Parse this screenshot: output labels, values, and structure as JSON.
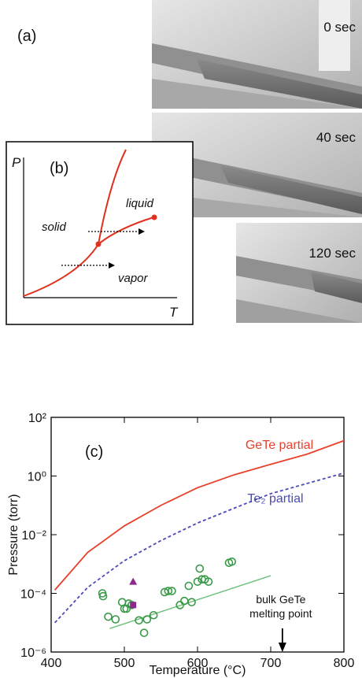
{
  "panel_a": {
    "label": "(a)",
    "frames": [
      "0 sec",
      "40 sec",
      "120 sec"
    ]
  },
  "panel_b": {
    "label": "(b)",
    "y_axis": "P",
    "x_axis": "T",
    "regions": [
      "solid",
      "liquid",
      "vapor"
    ]
  },
  "chart_data": {
    "type": "line",
    "panel_label": "(c)",
    "x_label": "Temperature (°C)",
    "y_label": "Pressure (torr)",
    "xlim": [
      400,
      800
    ],
    "xticks": [
      400,
      500,
      600,
      700,
      800
    ],
    "ylim": [
      1e-06,
      100
    ],
    "log_y": true,
    "yticks": [
      {
        "value": 1e-06,
        "label": "10⁻⁶"
      },
      {
        "value": 0.0001,
        "label": "10⁻⁴"
      },
      {
        "value": 0.01,
        "label": "10⁻²"
      },
      {
        "value": 1,
        "label": "10⁰"
      },
      {
        "value": 100,
        "label": "10²"
      }
    ],
    "series": [
      {
        "name": "GeTe partial",
        "color": "#e8402a",
        "x": [
          405,
          450,
          500,
          550,
          600,
          650,
          700,
          750,
          800
        ],
        "values": [
          0.00013,
          0.0025,
          0.02,
          0.1,
          0.4,
          1.1,
          2.5,
          5.6,
          16
        ]
      },
      {
        "name": "Te₂ partial",
        "color": "#4a4ab8",
        "dashed": true,
        "x": [
          405,
          450,
          500,
          550,
          600,
          650,
          700,
          750,
          800
        ],
        "values": [
          1e-05,
          0.00016,
          0.0013,
          0.0063,
          0.025,
          0.08,
          0.25,
          0.56,
          1.26
        ]
      },
      {
        "color": "#6cc07a",
        "x": [
          480,
          700
        ],
        "values": [
          6.3e-06,
          0.0004
        ]
      },
      {
        "color": "#3a9a4a",
        "marker": "circle",
        "x": [
          470,
          471,
          478,
          488,
          497,
          500,
          503,
          506,
          510,
          520,
          527,
          531,
          540,
          555,
          560,
          565,
          576,
          582,
          588,
          592,
          600,
          603,
          606,
          610,
          615,
          643,
          647
        ],
        "values": [
          0.0001,
          8e-05,
          1.6e-05,
          1.3e-05,
          5e-05,
          3e-05,
          3e-05,
          4.5e-05,
          4e-05,
          1.2e-05,
          4.5e-06,
          1.3e-05,
          1.8e-05,
          0.00011,
          0.00012,
          0.00012,
          4e-05,
          5.5e-05,
          0.00018,
          5e-05,
          0.00025,
          0.0007,
          0.0003,
          0.0003,
          0.00025,
          0.0011,
          0.0012
        ]
      },
      {
        "color": "#8a2a8a",
        "marker": "triangle",
        "x": [
          512
        ],
        "values": [
          0.00025
        ]
      },
      {
        "color": "#8a2a8a",
        "marker": "square",
        "x": [
          512
        ],
        "values": [
          4e-05
        ]
      }
    ],
    "annotation": {
      "x": 716,
      "text": [
        "bulk GeTe",
        "melting point"
      ]
    }
  }
}
